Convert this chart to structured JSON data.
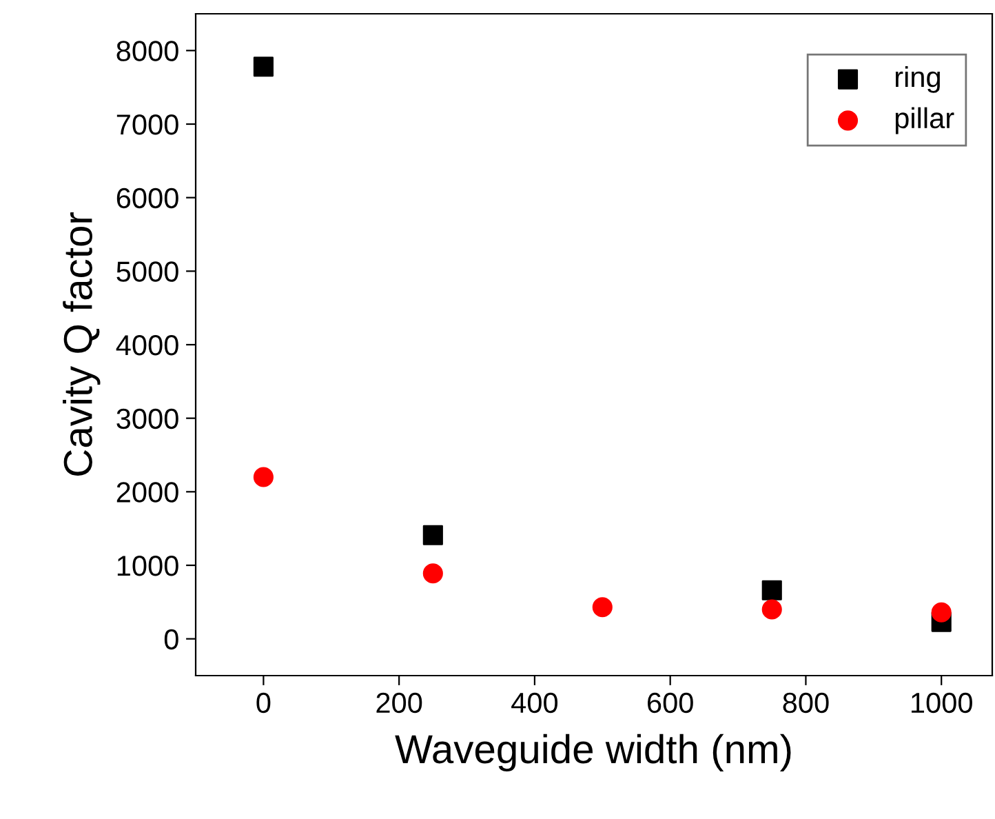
{
  "chart_data": {
    "type": "scatter",
    "xlabel": "Waveguide width (nm)",
    "ylabel": "Cavity Q factor",
    "x": [
      0,
      250,
      500,
      750,
      1000
    ],
    "series": [
      {
        "name": "ring",
        "color": "#000000",
        "marker": "square",
        "values": [
          7780,
          1410,
          null,
          660,
          230
        ]
      },
      {
        "name": "pillar",
        "color": "#ff0000",
        "marker": "circle",
        "values": [
          2200,
          890,
          430,
          400,
          360
        ]
      }
    ],
    "xlim": [
      -100,
      1075
    ],
    "xticks": [
      0,
      200,
      400,
      600,
      800,
      1000
    ],
    "ylim": [
      -500,
      8500
    ],
    "yticks": [
      0,
      1000,
      2000,
      3000,
      4000,
      5000,
      6000,
      7000,
      8000
    ],
    "grid": false,
    "legend": "top right"
  }
}
